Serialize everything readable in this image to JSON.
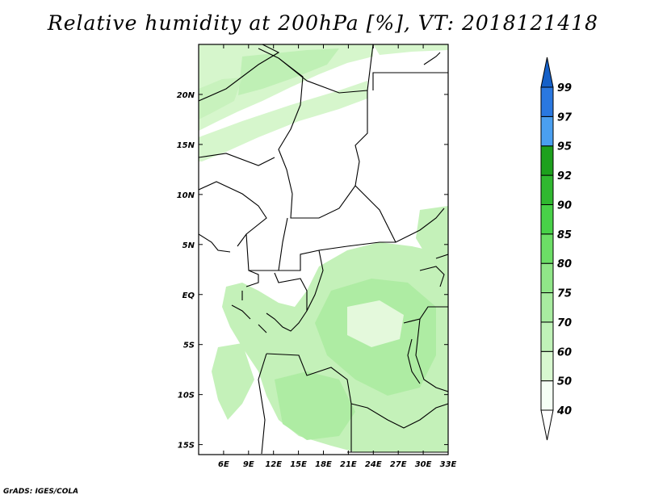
{
  "title": "Relative humidity at 200hPa [%], VT: 2018121418",
  "credit": "GrADS: IGES/COLA",
  "map": {
    "lon_range": [
      3,
      33
    ],
    "lat_range": [
      -16,
      25
    ],
    "lat_ticks": [
      {
        "value": 20,
        "label": "20N"
      },
      {
        "value": 15,
        "label": "15N"
      },
      {
        "value": 10,
        "label": "10N"
      },
      {
        "value": 5,
        "label": "5N"
      },
      {
        "value": 0,
        "label": "EQ"
      },
      {
        "value": -5,
        "label": "5S"
      },
      {
        "value": -10,
        "label": "10S"
      },
      {
        "value": -15,
        "label": "15S"
      }
    ],
    "lon_ticks": [
      {
        "value": 6,
        "label": "6E"
      },
      {
        "value": 9,
        "label": "9E"
      },
      {
        "value": 12,
        "label": "12E"
      },
      {
        "value": 15,
        "label": "15E"
      },
      {
        "value": 18,
        "label": "18E"
      },
      {
        "value": 21,
        "label": "21E"
      },
      {
        "value": 24,
        "label": "24E"
      },
      {
        "value": 27,
        "label": "27E"
      },
      {
        "value": 30,
        "label": "30E"
      },
      {
        "value": 33,
        "label": "33E"
      }
    ]
  },
  "colorbar": {
    "levels": [
      "40",
      "50",
      "60",
      "70",
      "75",
      "80",
      "85",
      "90",
      "92",
      "95",
      "97",
      "99"
    ],
    "colors": [
      "#f5fff5",
      "#d8f8d0",
      "#c0f2b8",
      "#a8eca0",
      "#90e688",
      "#6cde66",
      "#48d148",
      "#30b830",
      "#1da01d",
      "#4a9ff0",
      "#2a78e0",
      "#1560c8"
    ],
    "over_color": "#1560c8",
    "under_color": "#ffffff"
  }
}
